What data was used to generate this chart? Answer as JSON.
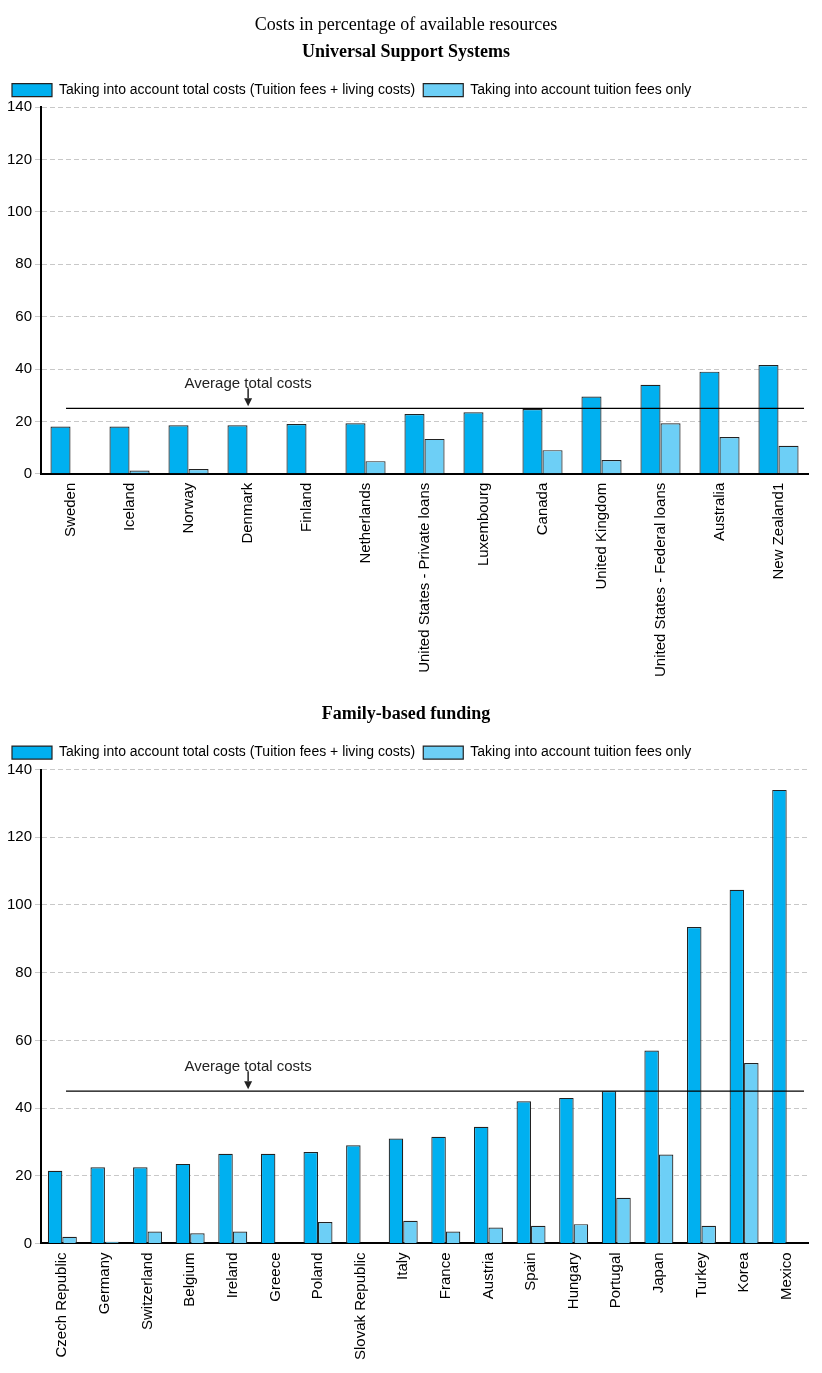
{
  "chart_data": [
    {
      "type": "bar",
      "title": "Costs in percentage of available resources",
      "subtitle": "Universal Support Systems",
      "categories": [
        "Sweden",
        "Iceland",
        "Norway",
        "Denmark",
        "Finland",
        "Netherlands",
        "United States - Private loans",
        "Luxembourg",
        "Canada",
        "United Kingdom",
        "United States - Federal loans",
        "Australia",
        "New Zealand1"
      ],
      "series": [
        {
          "name": "Taking into account total costs (Tuition fees + living costs)",
          "color": "#00b0f0",
          "values": [
            18,
            18,
            18.5,
            18.5,
            19,
            19.3,
            22.8,
            23.5,
            24.7,
            29.5,
            34,
            39,
            41.5
          ]
        },
        {
          "name": "Taking into account tuition fees only",
          "color": "#6dcff6",
          "values": [
            null,
            1.2,
            1.8,
            null,
            null,
            4.8,
            13.3,
            null,
            9,
            5.2,
            19.3,
            14,
            10.7
          ]
        }
      ],
      "ylim": [
        0,
        140
      ],
      "yticks": [
        0,
        20,
        40,
        60,
        80,
        100,
        120,
        140
      ],
      "grid": "y",
      "legend": "top left",
      "ref_lines": [
        {
          "axis": "y",
          "value": 25,
          "label": "Average total costs",
          "color": "#000000"
        }
      ]
    },
    {
      "type": "bar",
      "title": "Family-based funding",
      "categories": [
        "Czech Republic",
        "Germany",
        "Switzerland",
        "Belgium",
        "Ireland",
        "Greece",
        "Poland",
        "Slovak Republic",
        "Italy",
        "France",
        "Austria",
        "Spain",
        "Hungary",
        "Portugal",
        "Japan",
        "Turkey",
        "Korea",
        "Mexico"
      ],
      "series": [
        {
          "name": "Taking into account total costs (Tuition fees + living costs)",
          "color": "#00b0f0",
          "values": [
            21.5,
            22.5,
            22.5,
            23.5,
            26.5,
            26.5,
            27,
            29,
            31,
            31.5,
            34.5,
            42,
            43,
            45,
            57,
            93.5,
            104.5,
            134
          ]
        },
        {
          "name": "Taking into account tuition fees only",
          "color": "#6dcff6",
          "values": [
            2,
            0.5,
            3.5,
            3,
            3.5,
            null,
            6.3,
            null,
            6.7,
            3.5,
            4.7,
            5.2,
            5.7,
            13.5,
            26.3,
            5.2,
            53.3,
            null
          ]
        }
      ],
      "ylim": [
        0,
        140
      ],
      "yticks": [
        0,
        20,
        40,
        60,
        80,
        100,
        120,
        140
      ],
      "grid": "y",
      "legend": "top left",
      "ref_lines": [
        {
          "axis": "y",
          "value": 45,
          "label": "Average total costs",
          "color": "#000000"
        }
      ]
    }
  ]
}
